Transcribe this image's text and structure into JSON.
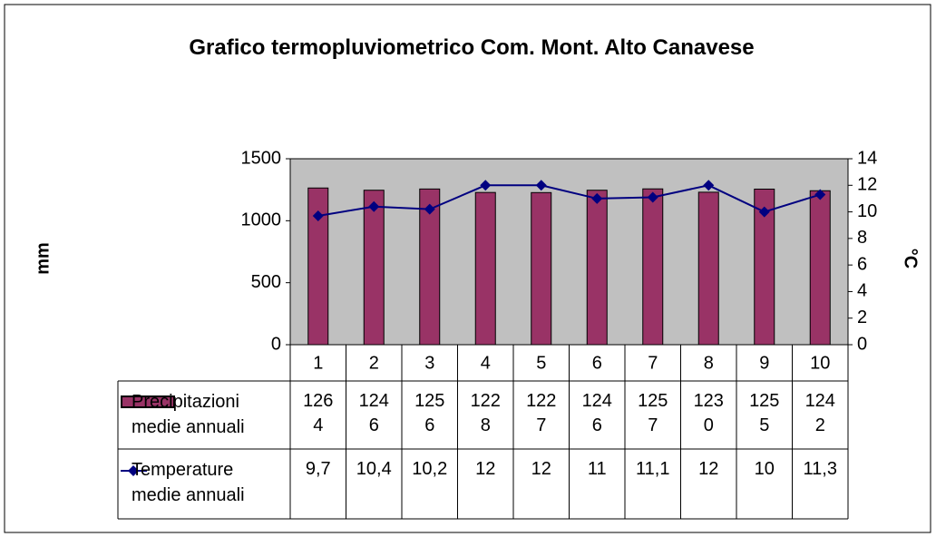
{
  "chart_data": {
    "type": "bar_line",
    "title": "Grafico termopluviometrico Com. Mont. Alto Canavese",
    "y_label": "mm",
    "y2_label": "°C",
    "categories": [
      "1",
      "2",
      "3",
      "4",
      "5",
      "6",
      "7",
      "8",
      "9",
      "10"
    ],
    "series": [
      {
        "name": "Precipitazioni medie annuali",
        "type": "bar",
        "color": "#993366",
        "values": [
          1264,
          1246,
          1256,
          1228,
          1227,
          1246,
          1257,
          1230,
          1255,
          1242
        ]
      },
      {
        "name": "Temperature medie annuali",
        "type": "line",
        "color": "#000080",
        "axis": "y2",
        "values": [
          9.7,
          10.4,
          10.2,
          12,
          12,
          11,
          11.1,
          12,
          10,
          11.3
        ],
        "value_labels": [
          "9,7",
          "10,4",
          "10,2",
          "12",
          "12",
          "11",
          "11,1",
          "12",
          "10",
          "11,3"
        ]
      }
    ],
    "ylim": [
      0,
      1500
    ],
    "yticks": [
      0,
      500,
      1000,
      1500
    ],
    "y2lim": [
      0,
      14
    ],
    "y2ticks": [
      0,
      2,
      4,
      6,
      8,
      10,
      12,
      14
    ],
    "plot_background": "#c0c0c0",
    "grid": false
  }
}
